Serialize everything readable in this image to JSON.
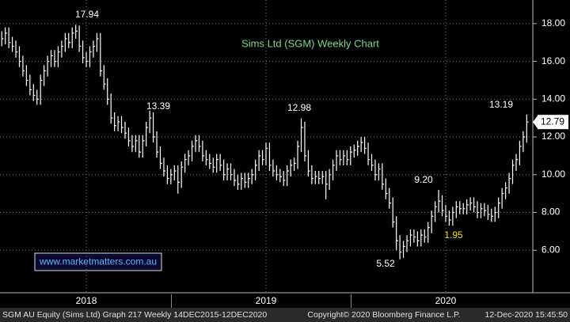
{
  "chart_data": {
    "type": "ohlc",
    "title": "Sims Ltd (SGM) Weekly Chart",
    "color": "#ffffff",
    "high": [
      17.6,
      17.8,
      17.8,
      17.3,
      17.1,
      16.8,
      16.3,
      15.8,
      15.3,
      14.8,
      14.5,
      15.3,
      15.8,
      16.3,
      16.6,
      16.6,
      16.8,
      17.1,
      17.5,
      17.5,
      17.8,
      17.94,
      17.9,
      17.1,
      16.5,
      16.8,
      17.1,
      17.5,
      17.5,
      15.8,
      15.1,
      14.3,
      13.3,
      13.1,
      13.1,
      12.8,
      12.5,
      12.1,
      12.1,
      12.1,
      12.1,
      12.8,
      13.39,
      13.3,
      12.3,
      11.5,
      10.9,
      10.5,
      10.3,
      10.5,
      10.5,
      10.7,
      11.1,
      11.3,
      11.8,
      12.1,
      12.1,
      11.8,
      11.3,
      11.1,
      10.9,
      11.1,
      11.1,
      10.8,
      10.6,
      10.6,
      10.3,
      10.0,
      10.1,
      10.1,
      10.1,
      10.3,
      10.8,
      11.3,
      11.3,
      11.7,
      11.7,
      10.8,
      10.5,
      10.3,
      10.2,
      10.5,
      10.8,
      10.9,
      11.8,
      12.98,
      12.8,
      11.3,
      10.5,
      10.2,
      10.2,
      10.2,
      10.2,
      10.3,
      10.8,
      11.3,
      11.3,
      11.3,
      11.3,
      11.5,
      11.6,
      11.8,
      12.0,
      12.0,
      11.7,
      11.1,
      10.8,
      10.6,
      10.6,
      9.8,
      9.3,
      8.8,
      7.8,
      6.8,
      6.5,
      6.8,
      7.1,
      7.1,
      7.0,
      7.1,
      7.1,
      7.5,
      8.1,
      8.6,
      9.2,
      8.9,
      8.4,
      8.1,
      8.3,
      8.6,
      8.6,
      8.5,
      8.7,
      8.8,
      8.8,
      8.6,
      8.5,
      8.5,
      8.4,
      8.2,
      8.3,
      8.8,
      9.3,
      9.6,
      10.1,
      10.8,
      11.1,
      11.8,
      12.3,
      13.19
    ],
    "low": [
      16.8,
      16.9,
      16.7,
      16.5,
      16.2,
      15.7,
      15.2,
      14.7,
      14.2,
      13.9,
      13.7,
      13.7,
      14.7,
      15.2,
      15.7,
      15.7,
      15.7,
      16.2,
      16.5,
      16.7,
      16.7,
      17.2,
      16.5,
      15.9,
      15.7,
      15.7,
      16.2,
      16.5,
      15.2,
      14.5,
      13.7,
      12.7,
      12.3,
      12.3,
      12.2,
      11.9,
      11.5,
      11.2,
      11.2,
      10.9,
      10.9,
      11.5,
      12.2,
      11.7,
      10.9,
      10.3,
      9.9,
      9.5,
      9.5,
      9.7,
      9.0,
      9.3,
      10.1,
      10.5,
      10.7,
      11.2,
      11.2,
      10.7,
      10.5,
      10.3,
      10.1,
      10.1,
      10.2,
      9.7,
      9.7,
      9.7,
      9.4,
      9.2,
      9.2,
      9.3,
      9.3,
      9.5,
      9.7,
      10.2,
      10.5,
      10.5,
      10.2,
      9.9,
      9.7,
      9.6,
      9.4,
      9.4,
      9.9,
      10.2,
      10.3,
      11.2,
      10.7,
      9.9,
      9.5,
      9.5,
      9.5,
      9.5,
      8.7,
      9.2,
      9.7,
      10.2,
      10.5,
      10.5,
      10.5,
      10.5,
      10.9,
      11.0,
      11.2,
      11.1,
      10.5,
      10.2,
      9.7,
      9.7,
      9.2,
      8.7,
      8.2,
      7.2,
      6.0,
      5.52,
      5.6,
      5.9,
      6.2,
      6.4,
      6.2,
      6.2,
      6.4,
      6.4,
      6.9,
      7.5,
      8.0,
      7.8,
      7.5,
      7.3,
      7.3,
      7.7,
      7.9,
      7.9,
      7.9,
      8.1,
      8.0,
      7.7,
      7.7,
      7.8,
      7.6,
      7.5,
      7.5,
      7.7,
      8.2,
      8.7,
      9.0,
      9.5,
      10.2,
      10.5,
      11.2,
      11.7
    ],
    "close": [
      17.2,
      17.5,
      17.0,
      16.8,
      16.5,
      16.0,
      15.5,
      15.0,
      14.5,
      14.2,
      14.0,
      15.0,
      15.5,
      16.0,
      16.3,
      16.0,
      16.5,
      16.8,
      17.2,
      17.0,
      17.5,
      17.6,
      16.8,
      16.2,
      16.0,
      16.5,
      16.8,
      17.2,
      15.5,
      14.8,
      14.0,
      13.0,
      12.6,
      12.8,
      12.5,
      12.2,
      11.8,
      11.5,
      11.8,
      11.2,
      11.8,
      12.5,
      13.0,
      12.0,
      11.2,
      10.6,
      10.2,
      9.8,
      10.0,
      10.2,
      9.6,
      10.4,
      10.8,
      11.0,
      11.5,
      11.8,
      11.5,
      11.0,
      10.8,
      10.6,
      10.4,
      10.8,
      10.5,
      10.0,
      10.3,
      10.0,
      9.7,
      9.5,
      9.8,
      9.6,
      9.8,
      10.0,
      10.5,
      11.0,
      10.8,
      11.4,
      10.5,
      10.2,
      10.0,
      9.9,
      9.7,
      10.2,
      10.5,
      10.6,
      11.5,
      12.5,
      11.0,
      10.2,
      9.8,
      9.9,
      9.8,
      9.9,
      9.5,
      10.0,
      10.5,
      11.0,
      10.8,
      11.0,
      10.8,
      11.2,
      11.3,
      11.5,
      11.7,
      11.4,
      10.8,
      10.5,
      10.0,
      10.3,
      9.5,
      9.0,
      8.5,
      7.5,
      6.5,
      5.9,
      6.2,
      6.5,
      6.8,
      6.7,
      6.5,
      6.8,
      6.7,
      7.2,
      7.8,
      8.3,
      8.6,
      8.1,
      7.8,
      7.6,
      8.0,
      8.3,
      8.2,
      8.2,
      8.4,
      8.5,
      8.3,
      8.0,
      8.2,
      8.1,
      7.9,
      7.8,
      8.0,
      8.5,
      9.0,
      9.3,
      9.8,
      10.5,
      10.8,
      11.5,
      12.0,
      12.79
    ],
    "last_price": 12.79,
    "xlim": [
      0,
      151
    ],
    "xticks": [
      {
        "value": 24.5,
        "label": "2018"
      },
      {
        "value": 75.5,
        "label": "2019"
      },
      {
        "value": 126.5,
        "label": "2020"
      }
    ],
    "ylim": [
      3.75,
      19.25
    ],
    "yticks": [
      {
        "value": 6,
        "label": "6.00"
      },
      {
        "value": 8,
        "label": "8.00"
      },
      {
        "value": 10,
        "label": "10.00"
      },
      {
        "value": 12,
        "label": "12.00"
      },
      {
        "value": 14,
        "label": "14.00"
      },
      {
        "value": 16,
        "label": "16.00"
      },
      {
        "value": 18,
        "label": "18.00"
      }
    ],
    "grid": true,
    "annotations": [
      "17.94",
      "13.39",
      "12.98",
      "9.20",
      "5.52",
      "13.19",
      "1.95"
    ],
    "website": "www.marketmatters.com.au",
    "footer": {
      "left": "SGM AU Equity (Sims Ltd) Graph 217  Weekly 14DEC2015-12DEC2020",
      "center": "Copyright© 2020 Bloomberg Finance L.P.",
      "right": "12-Dec-2020 15:45:50"
    }
  }
}
